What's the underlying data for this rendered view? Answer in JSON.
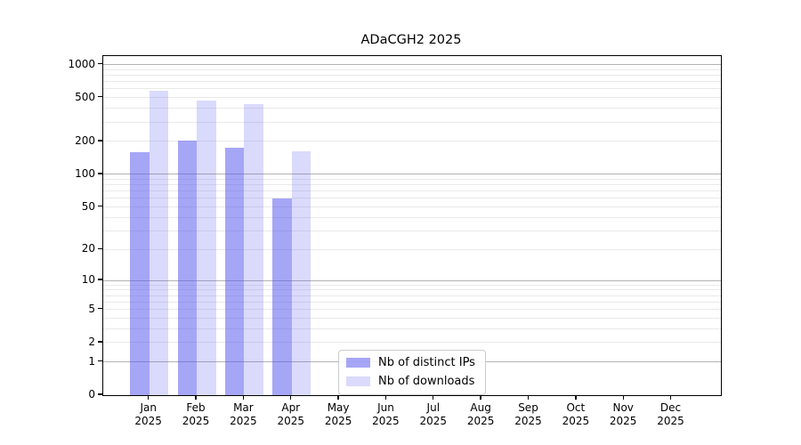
{
  "chart_data": {
    "type": "bar",
    "title": "ADaCGH2 2025",
    "year_label": "2025",
    "categories": [
      "Jan",
      "Feb",
      "Mar",
      "Apr",
      "May",
      "Jun",
      "Jul",
      "Aug",
      "Sep",
      "Oct",
      "Nov",
      "Dec"
    ],
    "series": [
      {
        "name": "Nb of distinct IPs",
        "color": "rgba(85,85,240,0.52)",
        "values": [
          158,
          202,
          175,
          60,
          0,
          0,
          0,
          0,
          0,
          0,
          0,
          0
        ]
      },
      {
        "name": "Nb of downloads",
        "color": "rgba(85,85,240,0.22)",
        "values": [
          582,
          472,
          438,
          163,
          0,
          0,
          0,
          0,
          0,
          0,
          0,
          0
        ]
      }
    ],
    "yscale": "log10(1+x)",
    "yticks": [
      1000,
      500,
      200,
      100,
      50,
      20,
      10,
      5,
      2,
      1,
      0
    ],
    "ylim": [
      0,
      1200
    ],
    "grid_major_values": [
      1,
      10,
      100,
      1000
    ],
    "grid_minor_values": [
      2,
      3,
      4,
      5,
      6,
      7,
      8,
      9,
      20,
      30,
      40,
      50,
      60,
      70,
      80,
      90,
      200,
      300,
      400,
      500,
      600,
      700,
      800,
      900
    ],
    "legend_position": "lower center-left inside plot"
  },
  "colors": {
    "bar_distinct_ips": "rgba(85,85,240,0.52)",
    "bar_downloads": "rgba(85,85,240,0.22)",
    "grid_major": "#b3b3b3",
    "grid_minor": "#e9e9e9",
    "spine": "#000000",
    "background": "#ffffff",
    "legend_border": "#cccccc"
  }
}
